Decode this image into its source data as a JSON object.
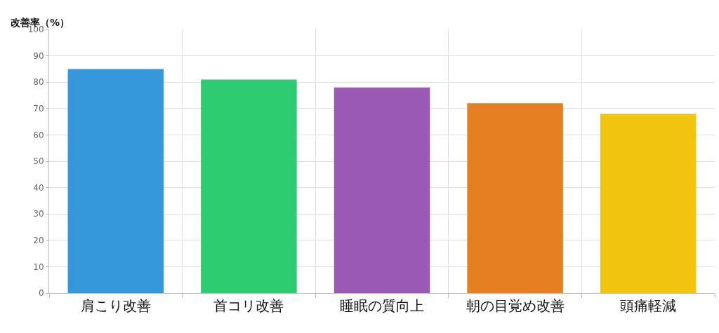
{
  "chart_data": {
    "type": "bar",
    "ylabel": "改善率（%）",
    "categories": [
      "肩こり改善",
      "首コリ改善",
      "睡眠の質向上",
      "朝の目覚め改善",
      "頭痛軽減"
    ],
    "values": [
      85,
      81,
      78,
      72,
      68
    ],
    "colors": [
      "#3498db",
      "#2ecc71",
      "#9b59b6",
      "#e67e22",
      "#f1c40f"
    ],
    "ylim": [
      0,
      100
    ],
    "yticks": [
      0,
      10,
      20,
      30,
      40,
      50,
      60,
      70,
      80,
      90,
      100
    ],
    "grid": true
  }
}
